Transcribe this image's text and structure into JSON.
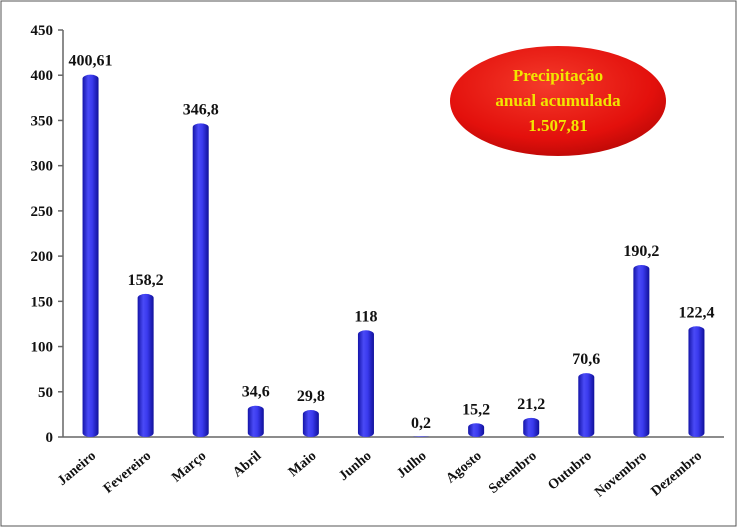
{
  "chart_data": {
    "type": "bar",
    "categories": [
      "Janeiro",
      "Fevereiro",
      "Março",
      "Abril",
      "Maio",
      "Junho",
      "Julho",
      "Agosto",
      "Setembro",
      "Outubro",
      "Novembro",
      "Dezembro"
    ],
    "values": [
      400.61,
      158.2,
      346.8,
      34.6,
      29.8,
      118,
      0.2,
      15.2,
      21.2,
      70.6,
      190.2,
      122.4
    ],
    "value_labels": [
      "400,61",
      "158,2",
      "346,8",
      "34,6",
      "29,8",
      "118",
      "0,2",
      "15,2",
      "21,2",
      "70,6",
      "190,2",
      "122,4"
    ],
    "y_ticks": [
      "0",
      "50",
      "100",
      "150",
      "200",
      "250",
      "300",
      "350",
      "400",
      "450"
    ],
    "ylim": [
      0,
      450
    ],
    "grid": false,
    "bar_color": "#3333ee",
    "annotation": {
      "lines": [
        "Precipitação",
        "anual acumulada",
        "1.507,81"
      ],
      "fill_color": "#e8100e",
      "text_color": "#f2e600"
    }
  }
}
